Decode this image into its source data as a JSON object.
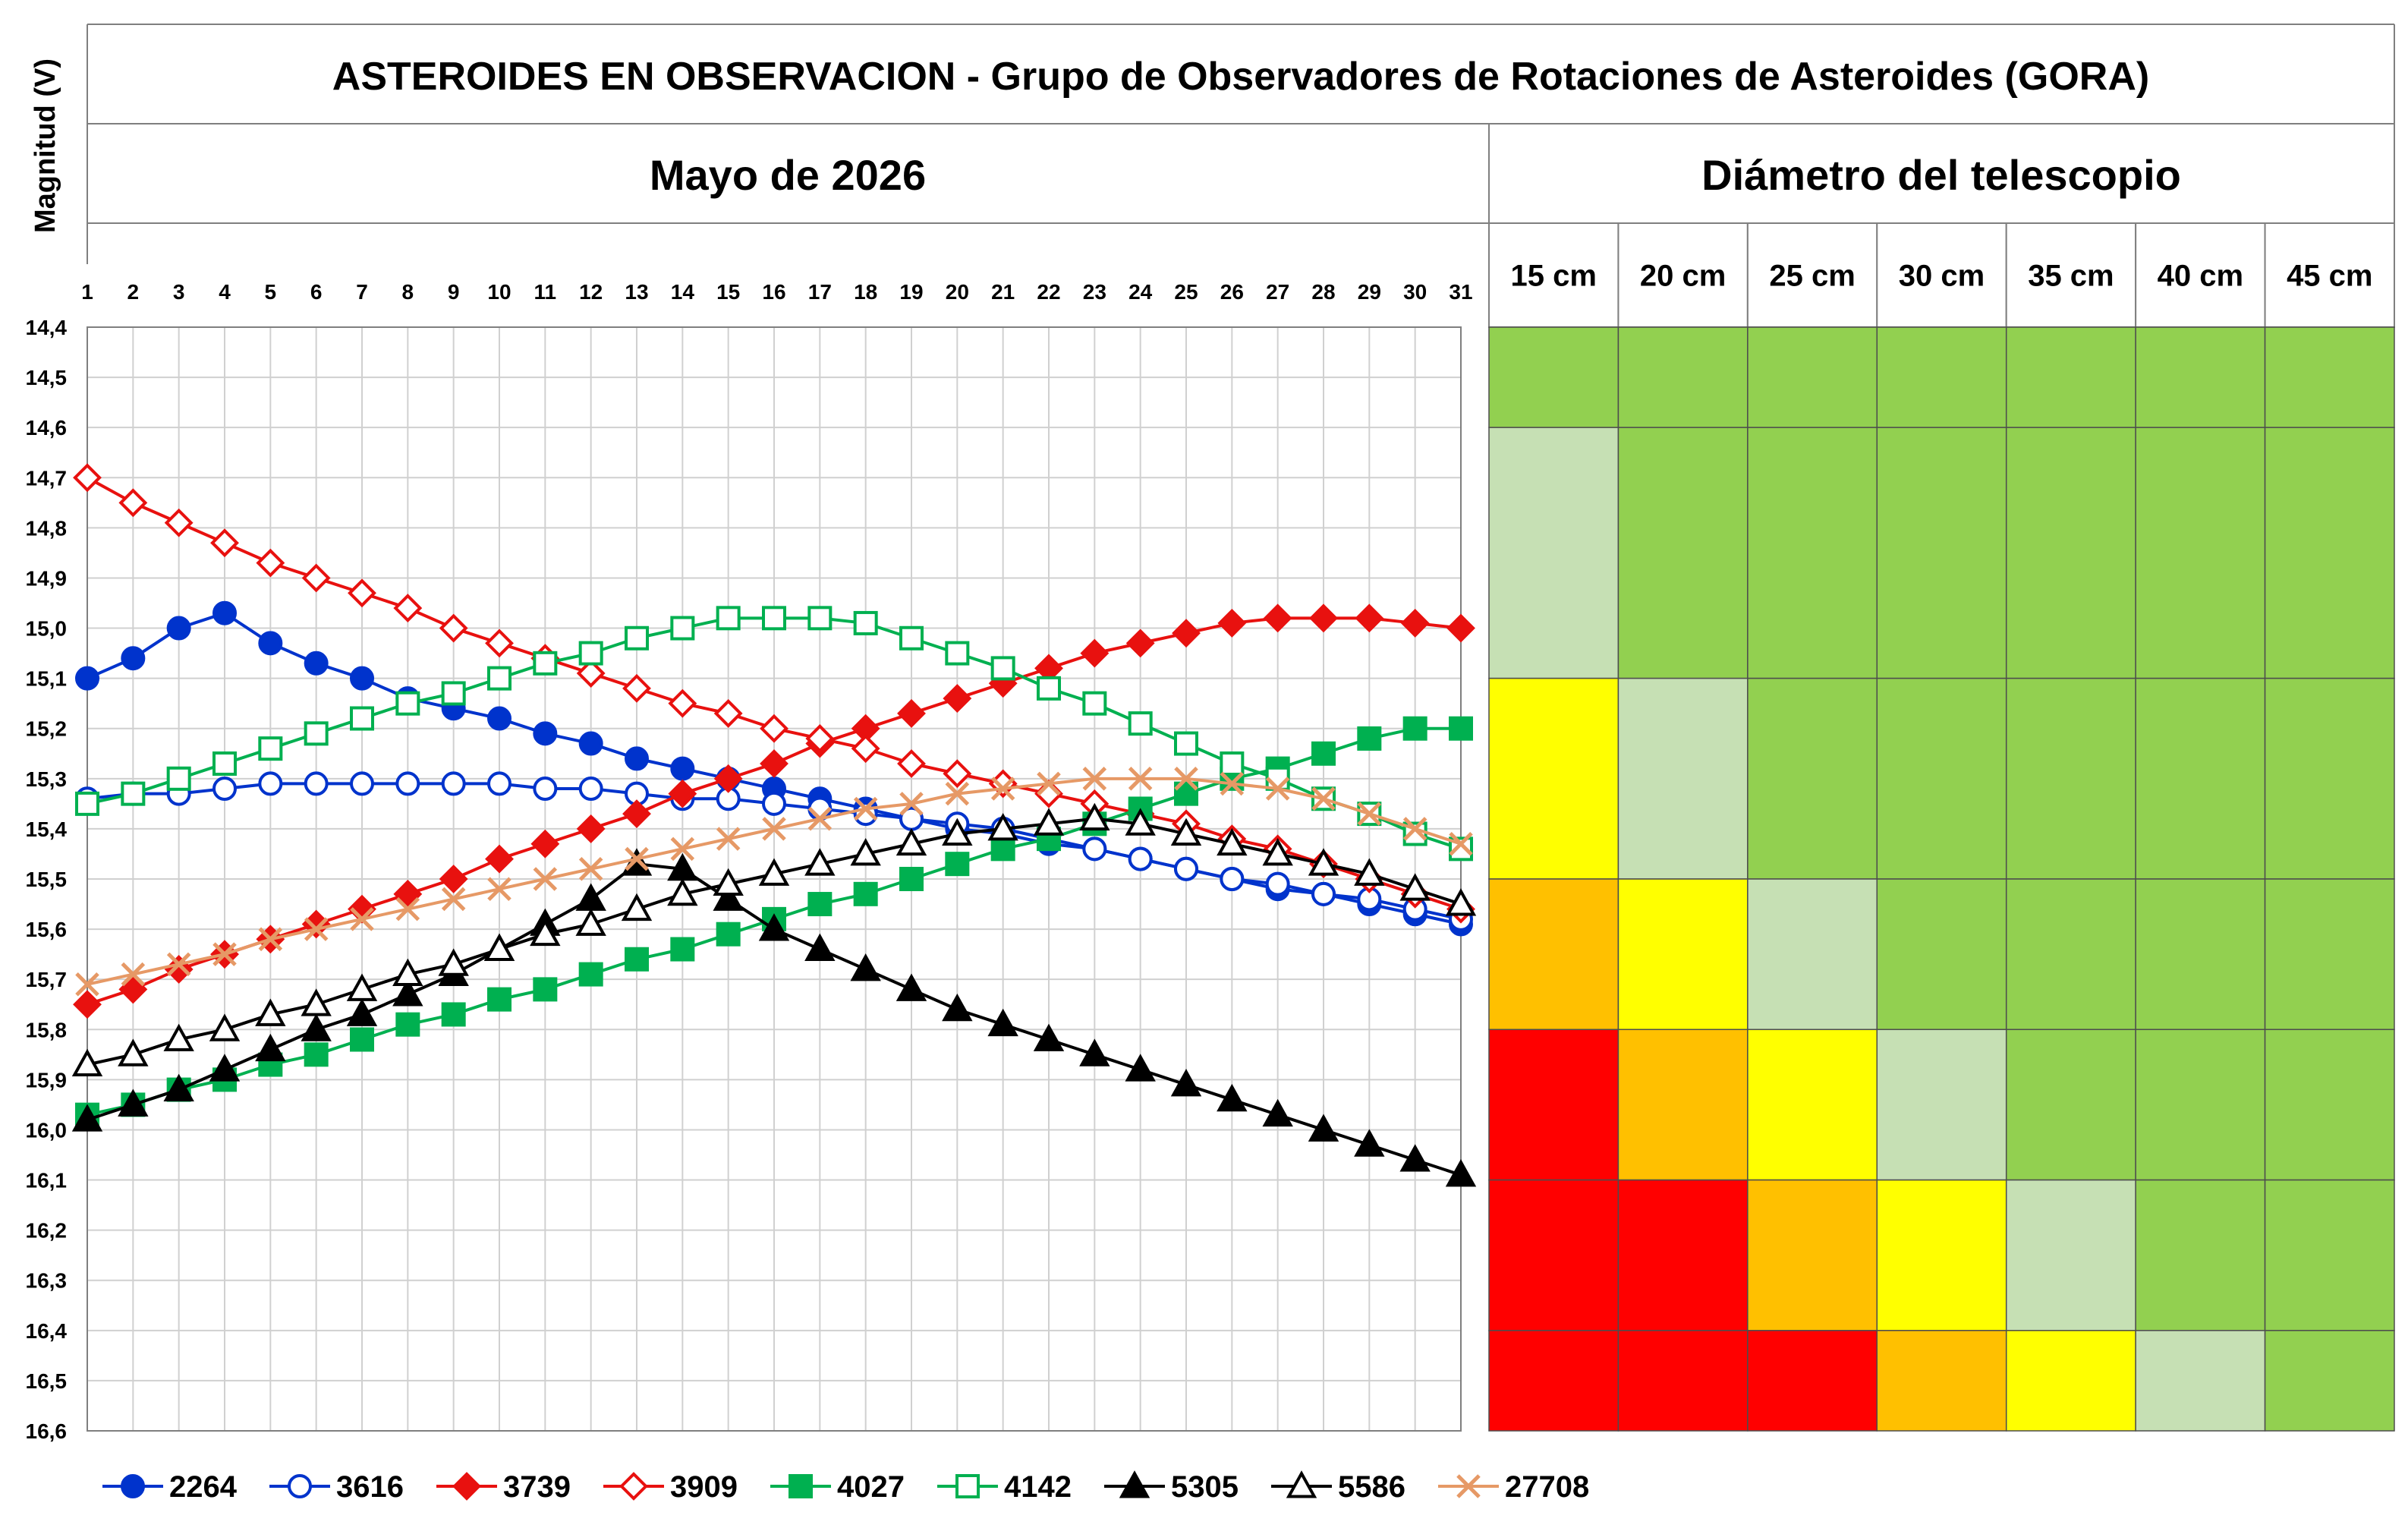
{
  "header": {
    "title": "ASTEROIDES EN OBSERVACION - Grupo de Observadores de Rotaciones de Asteroides (GORA)",
    "month_label": "Mayo de 2026",
    "telescope_label": "Diámetro del telescopio",
    "ylabel": "Magnitud (V)"
  },
  "telescope": {
    "columns": [
      "15 cm",
      "20 cm",
      "25 cm",
      "30 cm",
      "35 cm",
      "40 cm",
      "45 cm"
    ],
    "rows": [
      {
        "from": 14.4,
        "to": 14.6,
        "cells": [
          "g",
          "g",
          "g",
          "g",
          "g",
          "g",
          "g"
        ]
      },
      {
        "from": 14.6,
        "to": 15.1,
        "cells": [
          "l",
          "g",
          "g",
          "g",
          "g",
          "g",
          "g"
        ]
      },
      {
        "from": 15.1,
        "to": 15.5,
        "cells": [
          "y",
          "l",
          "g",
          "g",
          "g",
          "g",
          "g"
        ]
      },
      {
        "from": 15.5,
        "to": 15.8,
        "cells": [
          "o",
          "y",
          "l",
          "g",
          "g",
          "g",
          "g"
        ]
      },
      {
        "from": 15.8,
        "to": 16.1,
        "cells": [
          "r",
          "o",
          "y",
          "l",
          "g",
          "g",
          "g"
        ]
      },
      {
        "from": 16.1,
        "to": 16.4,
        "cells": [
          "r",
          "r",
          "o",
          "y",
          "l",
          "g",
          "g"
        ]
      },
      {
        "from": 16.4,
        "to": 16.6,
        "cells": [
          "r",
          "r",
          "r",
          "o",
          "y",
          "l",
          "g"
        ]
      }
    ],
    "colors": {
      "g": "#92D050",
      "l": "#C6E0B4",
      "y": "#FFFF00",
      "o": "#FFC000",
      "r": "#FF0000"
    }
  },
  "chart_data": {
    "type": "line",
    "ylabel": "Magnitud (V)",
    "ylim": [
      16.6,
      14.4
    ],
    "y_reversed": true,
    "y_ticks": [
      "14,4",
      "14,5",
      "14,6",
      "14,7",
      "14,8",
      "14,9",
      "15,0",
      "15,1",
      "15,2",
      "15,3",
      "15,4",
      "15,5",
      "15,6",
      "15,7",
      "15,8",
      "15,9",
      "16,0",
      "16,1",
      "16,2",
      "16,3",
      "16,4",
      "16,5",
      "16,6"
    ],
    "x": [
      1,
      2,
      3,
      4,
      5,
      6,
      7,
      8,
      9,
      10,
      11,
      12,
      13,
      14,
      15,
      16,
      17,
      18,
      19,
      20,
      21,
      22,
      23,
      24,
      25,
      26,
      27,
      28,
      29,
      30,
      31
    ],
    "grid": true,
    "legend_position": "bottom",
    "series": [
      {
        "name": "2264",
        "color": "#0033CC",
        "marker": "circle",
        "filled": true,
        "values": [
          15.1,
          15.06,
          15.0,
          14.97,
          15.03,
          15.07,
          15.1,
          15.14,
          15.16,
          15.18,
          15.21,
          15.23,
          15.26,
          15.28,
          15.3,
          15.32,
          15.34,
          15.36,
          15.38,
          15.4,
          15.41,
          15.43,
          15.44,
          15.46,
          15.48,
          15.5,
          15.52,
          15.53,
          15.55,
          15.57,
          15.59
        ]
      },
      {
        "name": "3616",
        "color": "#0033CC",
        "marker": "circle",
        "filled": false,
        "values": [
          15.34,
          15.33,
          15.33,
          15.32,
          15.31,
          15.31,
          15.31,
          15.31,
          15.31,
          15.31,
          15.32,
          15.32,
          15.33,
          15.34,
          15.34,
          15.35,
          15.36,
          15.37,
          15.38,
          15.39,
          15.4,
          15.42,
          15.44,
          15.46,
          15.48,
          15.5,
          15.51,
          15.53,
          15.54,
          15.56,
          15.58
        ]
      },
      {
        "name": "3739",
        "color": "#E8110F",
        "marker": "diamond",
        "filled": true,
        "values": [
          15.75,
          15.72,
          15.68,
          15.65,
          15.62,
          15.59,
          15.56,
          15.53,
          15.5,
          15.46,
          15.43,
          15.4,
          15.37,
          15.33,
          15.3,
          15.27,
          15.23,
          15.2,
          15.17,
          15.14,
          15.11,
          15.08,
          15.05,
          15.03,
          15.01,
          14.99,
          14.98,
          14.98,
          14.98,
          14.99,
          15.0
        ]
      },
      {
        "name": "3909",
        "color": "#E8110F",
        "marker": "diamond",
        "filled": false,
        "values": [
          14.7,
          14.75,
          14.79,
          14.83,
          14.87,
          14.9,
          14.93,
          14.96,
          15.0,
          15.03,
          15.06,
          15.09,
          15.12,
          15.15,
          15.17,
          15.2,
          15.22,
          15.24,
          15.27,
          15.29,
          15.31,
          15.33,
          15.35,
          15.37,
          15.39,
          15.42,
          15.44,
          15.47,
          15.5,
          15.53,
          15.56
        ]
      },
      {
        "name": "4027",
        "color": "#00B050",
        "marker": "square",
        "filled": true,
        "values": [
          15.97,
          15.95,
          15.92,
          15.9,
          15.87,
          15.85,
          15.82,
          15.79,
          15.77,
          15.74,
          15.72,
          15.69,
          15.66,
          15.64,
          15.61,
          15.58,
          15.55,
          15.53,
          15.5,
          15.47,
          15.44,
          15.42,
          15.39,
          15.36,
          15.33,
          15.3,
          15.28,
          15.25,
          15.22,
          15.2,
          15.2
        ]
      },
      {
        "name": "4142",
        "color": "#00B050",
        "marker": "square",
        "filled": false,
        "values": [
          15.35,
          15.33,
          15.3,
          15.27,
          15.24,
          15.21,
          15.18,
          15.15,
          15.13,
          15.1,
          15.07,
          15.05,
          15.02,
          15.0,
          14.98,
          14.98,
          14.98,
          14.99,
          15.02,
          15.05,
          15.08,
          15.12,
          15.15,
          15.19,
          15.23,
          15.27,
          15.3,
          15.34,
          15.37,
          15.41,
          15.44
        ]
      },
      {
        "name": "5305",
        "color": "#000000",
        "marker": "triangle",
        "filled": true,
        "values": [
          15.98,
          15.95,
          15.92,
          15.88,
          15.84,
          15.8,
          15.77,
          15.73,
          15.69,
          15.64,
          15.59,
          15.54,
          15.47,
          15.48,
          15.54,
          15.6,
          15.64,
          15.68,
          15.72,
          15.76,
          15.79,
          15.82,
          15.85,
          15.88,
          15.91,
          15.94,
          15.97,
          16.0,
          16.03,
          16.06,
          16.09
        ]
      },
      {
        "name": "5586",
        "color": "#000000",
        "marker": "triangle",
        "filled": false,
        "values": [
          15.87,
          15.85,
          15.82,
          15.8,
          15.77,
          15.75,
          15.72,
          15.69,
          15.67,
          15.64,
          15.61,
          15.59,
          15.56,
          15.53,
          15.51,
          15.49,
          15.47,
          15.45,
          15.43,
          15.41,
          15.4,
          15.39,
          15.38,
          15.39,
          15.41,
          15.43,
          15.45,
          15.47,
          15.49,
          15.52,
          15.55
        ]
      },
      {
        "name": "27708",
        "color": "#E69966",
        "marker": "x",
        "filled": false,
        "values": [
          15.71,
          15.69,
          15.67,
          15.65,
          15.62,
          15.6,
          15.58,
          15.56,
          15.54,
          15.52,
          15.5,
          15.48,
          15.46,
          15.44,
          15.42,
          15.4,
          15.38,
          15.36,
          15.35,
          15.33,
          15.32,
          15.31,
          15.3,
          15.3,
          15.3,
          15.31,
          15.32,
          15.34,
          15.37,
          15.4,
          15.43
        ]
      }
    ]
  }
}
